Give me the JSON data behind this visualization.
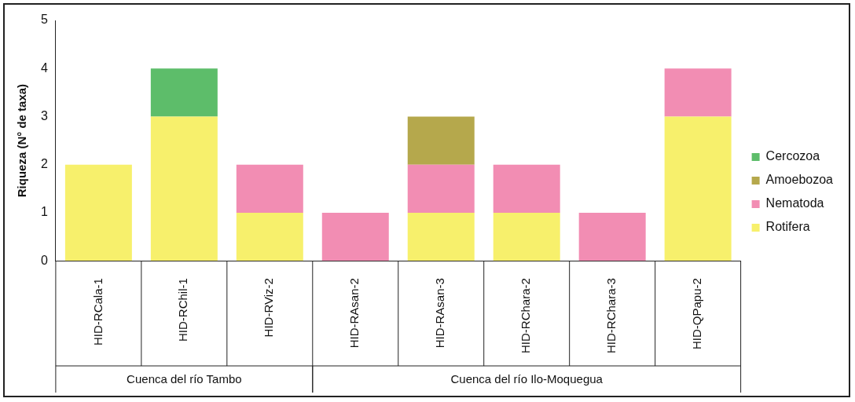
{
  "chart_data": {
    "type": "bar",
    "stacked": true,
    "ylabel": "Riqueza (N° de taxa)",
    "categories": [
      "HID-RCala-1",
      "HID-RChil-1",
      "HID-RViz-2",
      "HID-RAsan-2",
      "HID-RAsan-3",
      "HID-RChara-2",
      "HID-RChara-3",
      "HID-QPapu-2"
    ],
    "series": [
      {
        "name": "Rotifera",
        "color": "#f7f06c",
        "values": [
          2,
          3,
          1,
          0,
          1,
          1,
          0,
          3
        ]
      },
      {
        "name": "Nematoda",
        "color": "#f28db3",
        "values": [
          0,
          0,
          1,
          1,
          1,
          1,
          1,
          1
        ]
      },
      {
        "name": "Amoebozoa",
        "color": "#b5a84c",
        "values": [
          0,
          0,
          0,
          0,
          1,
          0,
          0,
          0
        ]
      },
      {
        "name": "Cercozoa",
        "color": "#5dbd6a",
        "values": [
          0,
          1,
          0,
          0,
          0,
          0,
          0,
          0
        ]
      }
    ],
    "ylim": [
      0,
      5
    ],
    "yticks": [
      0,
      1,
      2,
      3,
      4,
      5
    ],
    "grid": false,
    "legend": "right",
    "annotations": [
      "Cuenca del río Tambo",
      "Cuenca del río Ilo-Moquegua"
    ]
  }
}
